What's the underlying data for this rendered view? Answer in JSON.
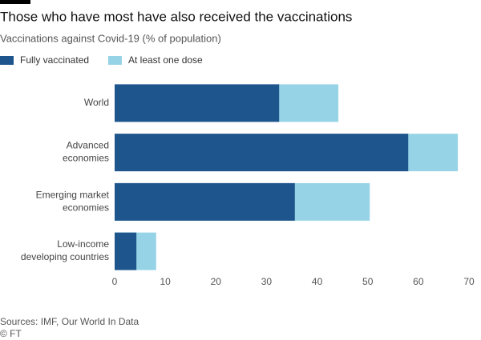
{
  "chart_data": {
    "type": "bar",
    "orientation": "horizontal",
    "barmode": "overlay",
    "title": "Those who have most have also received the vaccinations",
    "subtitle": "Vaccinations against Covid-19 (% of population)",
    "categories": [
      "World",
      "Advanced\neconomies",
      "Emerging market\neconomies",
      "Low-income\ndeveloping countries"
    ],
    "series": [
      {
        "name": "Fully vaccinated",
        "color": "#1e558c",
        "values": [
          32.5,
          58.0,
          35.6,
          4.3
        ]
      },
      {
        "name": "At least one dose",
        "color": "#96d3e6",
        "values": [
          44.2,
          67.8,
          50.4,
          8.2
        ]
      }
    ],
    "xlim": [
      0,
      70
    ],
    "xticks": [
      0,
      10,
      20,
      30,
      40,
      50,
      60,
      70
    ],
    "grid": false,
    "source": "Sources: IMF, Our World In Data",
    "credit": "© FT"
  }
}
